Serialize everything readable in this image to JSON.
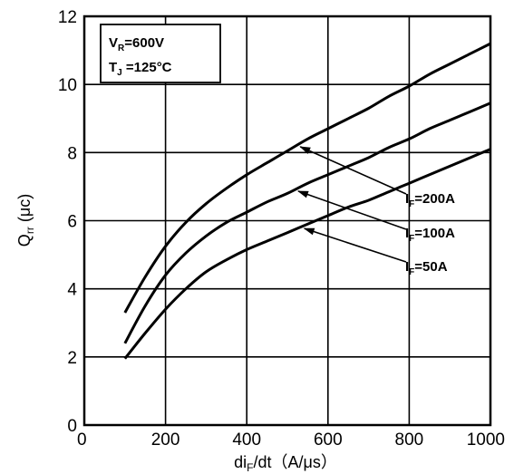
{
  "chart_data": {
    "type": "line",
    "x_axis": {
      "label_main": "di",
      "label_sub": "F",
      "label_rest": "/dt（A/μs）",
      "range": [
        0,
        1000
      ],
      "ticks": [
        0,
        200,
        400,
        600,
        800,
        1000
      ]
    },
    "y_axis": {
      "label_main": "Q",
      "label_sub": "rr",
      "label_rest": " (μc)",
      "range": [
        0,
        12
      ],
      "ticks": [
        0,
        2,
        4,
        6,
        8,
        10,
        12
      ]
    },
    "grid": true,
    "conditions": {
      "line1_main": "V",
      "line1_sub": "R",
      "line1_rest": "=600V",
      "line2_main": "T",
      "line2_sub": "J",
      "line2_rest": " =125°C"
    },
    "series": [
      {
        "name_main": "I",
        "name_sub": "F",
        "name_rest": "=200A",
        "x": [
          100,
          150,
          200,
          250,
          300,
          350,
          400,
          450,
          500,
          550,
          600,
          650,
          700,
          750,
          800,
          850,
          900,
          950,
          1000
        ],
        "y": [
          3.3,
          4.35,
          5.25,
          5.95,
          6.5,
          6.95,
          7.35,
          7.7,
          8.05,
          8.4,
          8.7,
          9.0,
          9.3,
          9.65,
          9.95,
          10.3,
          10.6,
          10.9,
          11.2
        ]
      },
      {
        "name_main": "I",
        "name_sub": "F",
        "name_rest": "=100A",
        "x": [
          100,
          150,
          200,
          250,
          300,
          350,
          400,
          450,
          500,
          550,
          600,
          650,
          700,
          750,
          800,
          850,
          900,
          950,
          1000
        ],
        "y": [
          2.4,
          3.5,
          4.4,
          5.05,
          5.55,
          5.95,
          6.25,
          6.55,
          6.8,
          7.1,
          7.35,
          7.6,
          7.85,
          8.15,
          8.4,
          8.7,
          8.95,
          9.2,
          9.45
        ]
      },
      {
        "name_main": "I",
        "name_sub": "F",
        "name_rest": "=50A",
        "x": [
          100,
          150,
          200,
          250,
          300,
          350,
          400,
          450,
          500,
          550,
          600,
          650,
          700,
          750,
          800,
          850,
          900,
          950,
          1000
        ],
        "y": [
          1.95,
          2.7,
          3.4,
          4.0,
          4.5,
          4.85,
          5.15,
          5.4,
          5.65,
          5.9,
          6.15,
          6.4,
          6.6,
          6.85,
          7.1,
          7.35,
          7.6,
          7.85,
          8.1
        ]
      }
    ]
  }
}
